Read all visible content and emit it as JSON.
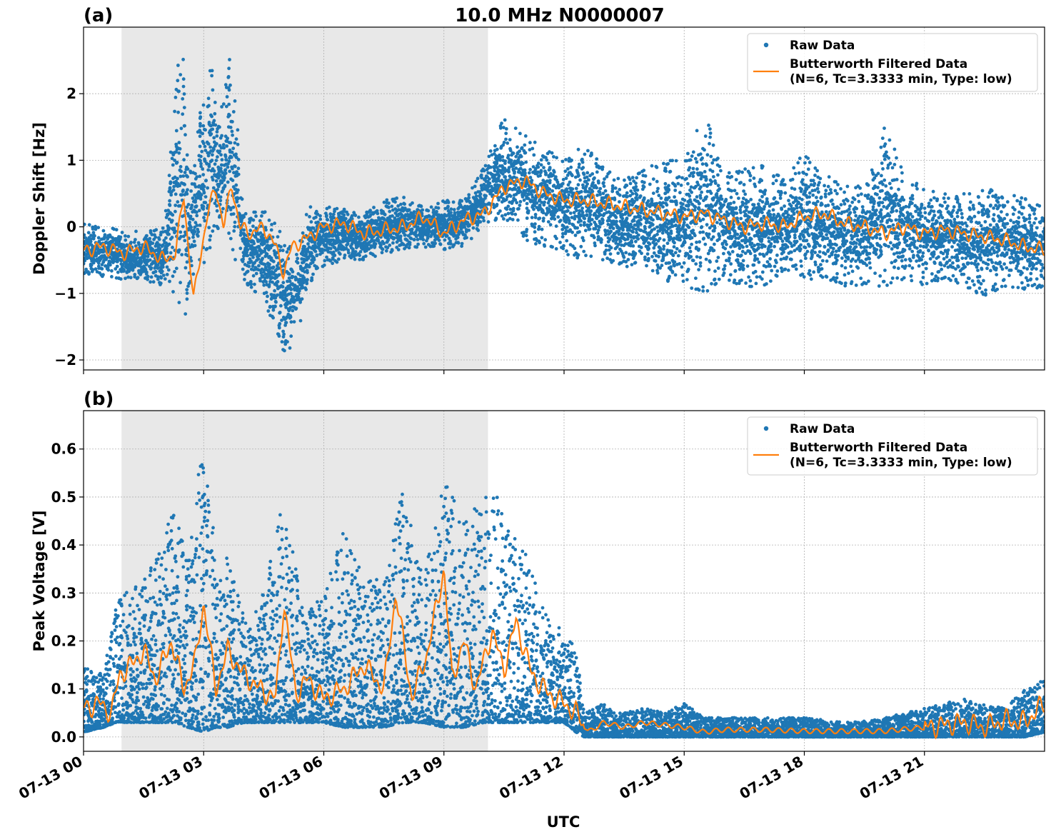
{
  "figure": {
    "title": "10.0 MHz N0000007",
    "xlabel": "UTC",
    "x_tick_labels": [
      "07-13 00",
      "07-13 03",
      "07-13 06",
      "07-13 09",
      "07-13 12",
      "07-13 15",
      "07-13 18",
      "07-13 21"
    ]
  },
  "colors": {
    "raw": "#1f77b4",
    "filtered": "#ff7f0e",
    "shade": "#e8e8e8",
    "grid": "#b0b0b0"
  },
  "chart_data": [
    {
      "type": "scatter",
      "panel_label": "(a)",
      "ylabel": "Doppler Shift [Hz]",
      "xlim_hours": [
        0,
        24
      ],
      "ylim": [
        -2.15,
        3.0
      ],
      "y_ticks": [
        -2,
        -1,
        0,
        1,
        2
      ],
      "y_tick_labels": [
        "−2",
        "−1",
        "0",
        "1",
        "2"
      ],
      "shaded_span_hours": [
        0.95,
        10.1
      ],
      "grid": true,
      "legend": {
        "placement": "top-right",
        "entries": [
          "Raw Data",
          "Butterworth Filtered Data",
          "(N=6, Tc=3.3333 min, Type: low)"
        ]
      },
      "series": [
        {
          "name": "Raw Data",
          "style": "points",
          "x_hours": [
            0,
            0.5,
            1,
            1.5,
            2,
            2.4,
            2.5,
            2.6,
            2.7,
            2.8,
            3.0,
            3.2,
            3.4,
            3.6,
            3.8,
            4.0,
            4.4,
            4.8,
            5.0,
            5.2,
            5.4,
            5.6,
            6.0,
            6.5,
            7.0,
            7.5,
            8.0,
            8.5,
            9.0,
            9.5,
            10.0,
            10.5,
            11.0,
            11.5,
            12.0,
            12.5,
            13.0,
            13.5,
            14.0,
            14.5,
            15.0,
            15.5,
            16.0,
            16.5,
            17.0,
            17.5,
            18.0,
            18.5,
            19.0,
            19.5,
            20.0,
            20.5,
            21.0,
            21.5,
            22.0,
            22.5,
            23.0,
            23.5,
            24.0
          ],
          "y_hi": [
            0.05,
            0.0,
            -0.05,
            -0.05,
            0.0,
            2.7,
            2.5,
            1.0,
            0.8,
            1.2,
            2.2,
            2.7,
            1.5,
            2.75,
            2.0,
            0.2,
            0.3,
            0.1,
            -0.2,
            -0.3,
            -0.2,
            0.3,
            0.3,
            0.3,
            0.2,
            0.4,
            0.45,
            0.3,
            0.4,
            0.4,
            0.9,
            1.65,
            1.4,
            1.2,
            1.0,
            1.25,
            0.9,
            0.7,
            0.9,
            1.0,
            1.0,
            1.75,
            0.8,
            0.9,
            1.0,
            0.7,
            1.15,
            0.8,
            0.6,
            0.7,
            1.55,
            0.8,
            0.6,
            0.5,
            0.5,
            0.6,
            0.5,
            0.45,
            0.3
          ],
          "y_lo": [
            -0.7,
            -0.75,
            -0.8,
            -0.8,
            -0.9,
            -1.2,
            -1.6,
            -1.7,
            -1.0,
            -0.5,
            -0.6,
            -0.4,
            -0.3,
            -0.4,
            -0.5,
            -0.8,
            -1.1,
            -1.5,
            -1.9,
            -1.8,
            -1.5,
            -0.9,
            -0.6,
            -0.5,
            -0.5,
            -0.4,
            -0.35,
            -0.3,
            -0.35,
            -0.3,
            0.0,
            0.1,
            -0.2,
            -0.3,
            -0.4,
            -0.5,
            -0.5,
            -0.6,
            -0.7,
            -0.8,
            -0.9,
            -1.0,
            -0.8,
            -0.9,
            -0.9,
            -0.7,
            -0.8,
            -0.8,
            -0.9,
            -0.9,
            -0.9,
            -0.8,
            -0.9,
            -0.8,
            -0.9,
            -1.05,
            -0.9,
            -0.95,
            -0.9
          ]
        },
        {
          "name": "Butterworth Filtered Data",
          "style": "line",
          "x_hours": [
            0,
            0.5,
            1.0,
            1.5,
            2.0,
            2.3,
            2.5,
            2.6,
            2.75,
            2.9,
            3.1,
            3.3,
            3.5,
            3.7,
            3.9,
            4.2,
            4.5,
            4.8,
            5.0,
            5.2,
            5.5,
            6.0,
            6.5,
            7.0,
            7.5,
            8.0,
            8.5,
            9.0,
            9.5,
            10.0,
            10.5,
            11.0,
            11.5,
            12.0,
            12.5,
            13.0,
            13.5,
            14.0,
            14.5,
            15.0,
            15.5,
            16.0,
            16.5,
            17.0,
            17.5,
            18.0,
            18.5,
            19.0,
            19.5,
            20.0,
            20.5,
            21.0,
            21.5,
            22.0,
            22.5,
            23.0,
            23.5,
            24.0
          ],
          "values": [
            -0.35,
            -0.3,
            -0.4,
            -0.3,
            -0.5,
            -0.4,
            0.5,
            -0.2,
            -1.1,
            -0.5,
            0.2,
            0.6,
            0.0,
            0.65,
            0.0,
            -0.1,
            0.0,
            -0.3,
            -0.7,
            -0.3,
            -0.2,
            0.0,
            0.05,
            -0.1,
            -0.05,
            0.0,
            0.15,
            -0.1,
            0.1,
            0.2,
            0.6,
            0.7,
            0.5,
            0.4,
            0.4,
            0.35,
            0.3,
            0.25,
            0.2,
            0.15,
            0.2,
            0.1,
            0.0,
            0.05,
            0.0,
            0.15,
            0.2,
            0.05,
            0.0,
            -0.1,
            0.0,
            -0.1,
            -0.05,
            -0.1,
            -0.15,
            -0.2,
            -0.3,
            -0.35
          ]
        }
      ]
    },
    {
      "type": "scatter",
      "panel_label": "(b)",
      "ylabel": "Peak Voltage [V]",
      "xlim_hours": [
        0,
        24
      ],
      "ylim": [
        -0.03,
        0.68
      ],
      "y_ticks": [
        0.0,
        0.1,
        0.2,
        0.3,
        0.4,
        0.5,
        0.6
      ],
      "y_tick_labels": [
        "0.0",
        "0.1",
        "0.2",
        "0.3",
        "0.4",
        "0.5",
        "0.6"
      ],
      "shaded_span_hours": [
        0.95,
        10.1
      ],
      "grid": true,
      "legend": {
        "placement": "top-right",
        "entries": [
          "Raw Data",
          "Butterworth Filtered Data",
          "(N=6, Tc=3.3333 min, Type: low)"
        ]
      },
      "series": [
        {
          "name": "Raw Data",
          "style": "points",
          "x_hours": [
            0,
            0.5,
            0.8,
            1.0,
            1.3,
            1.6,
            2.0,
            2.3,
            2.6,
            3.0,
            3.3,
            3.6,
            4.0,
            4.5,
            5.0,
            5.5,
            6.0,
            6.5,
            7.0,
            7.5,
            8.0,
            8.5,
            9.0,
            9.5,
            10.0,
            10.5,
            11.0,
            11.5,
            12.0,
            12.3,
            12.5,
            13.0,
            13.5,
            14.0,
            14.5,
            15.0,
            15.5,
            16.0,
            17.0,
            18.0,
            19.0,
            20.0,
            21.0,
            21.5,
            22.0,
            22.5,
            23.0,
            23.5,
            24.0
          ],
          "y_hi": [
            0.15,
            0.13,
            0.27,
            0.3,
            0.33,
            0.34,
            0.43,
            0.49,
            0.36,
            0.64,
            0.4,
            0.38,
            0.25,
            0.3,
            0.5,
            0.25,
            0.3,
            0.43,
            0.33,
            0.33,
            0.53,
            0.33,
            0.54,
            0.45,
            0.5,
            0.5,
            0.4,
            0.26,
            0.22,
            0.19,
            0.05,
            0.07,
            0.05,
            0.06,
            0.05,
            0.07,
            0.04,
            0.04,
            0.04,
            0.04,
            0.03,
            0.04,
            0.06,
            0.07,
            0.08,
            0.07,
            0.06,
            0.1,
            0.12
          ],
          "y_lo": [
            0.01,
            0.02,
            0.03,
            0.03,
            0.03,
            0.03,
            0.03,
            0.03,
            0.02,
            0.01,
            0.02,
            0.02,
            0.03,
            0.03,
            0.03,
            0.03,
            0.03,
            0.02,
            0.02,
            0.02,
            0.03,
            0.03,
            0.02,
            0.02,
            0.03,
            0.03,
            0.03,
            0.03,
            0.03,
            0.01,
            0.0,
            0.0,
            0.0,
            0.0,
            0.0,
            0.0,
            0.0,
            0.0,
            0.0,
            0.0,
            0.0,
            0.0,
            0.0,
            0.0,
            0.0,
            0.0,
            0.0,
            0.0,
            0.01
          ]
        },
        {
          "name": "Butterworth Filtered Data",
          "style": "line",
          "x_hours": [
            0,
            0.4,
            0.7,
            0.9,
            1.2,
            1.5,
            1.8,
            2.2,
            2.5,
            2.8,
            3.0,
            3.3,
            3.6,
            4.0,
            4.4,
            4.8,
            5.0,
            5.3,
            5.6,
            6.0,
            6.5,
            7.0,
            7.5,
            7.8,
            8.2,
            8.6,
            9.0,
            9.2,
            9.5,
            9.8,
            10.2,
            10.5,
            10.8,
            11.2,
            11.6,
            12.0,
            12.3,
            12.6,
            13.0,
            13.5,
            14.0,
            14.5,
            15.0,
            15.5,
            16.0,
            17.0,
            18.0,
            19.0,
            20.0,
            21.0,
            22.0,
            22.5,
            23.0,
            23.5,
            24.0
          ],
          "values": [
            0.06,
            0.07,
            0.05,
            0.13,
            0.15,
            0.18,
            0.12,
            0.2,
            0.1,
            0.16,
            0.28,
            0.1,
            0.18,
            0.13,
            0.1,
            0.08,
            0.28,
            0.09,
            0.12,
            0.08,
            0.1,
            0.15,
            0.1,
            0.3,
            0.08,
            0.18,
            0.35,
            0.12,
            0.2,
            0.1,
            0.22,
            0.14,
            0.24,
            0.13,
            0.09,
            0.07,
            0.05,
            0.01,
            0.03,
            0.02,
            0.03,
            0.025,
            0.02,
            0.01,
            0.015,
            0.015,
            0.012,
            0.012,
            0.012,
            0.02,
            0.03,
            0.02,
            0.035,
            0.03,
            0.07
          ]
        }
      ]
    }
  ]
}
